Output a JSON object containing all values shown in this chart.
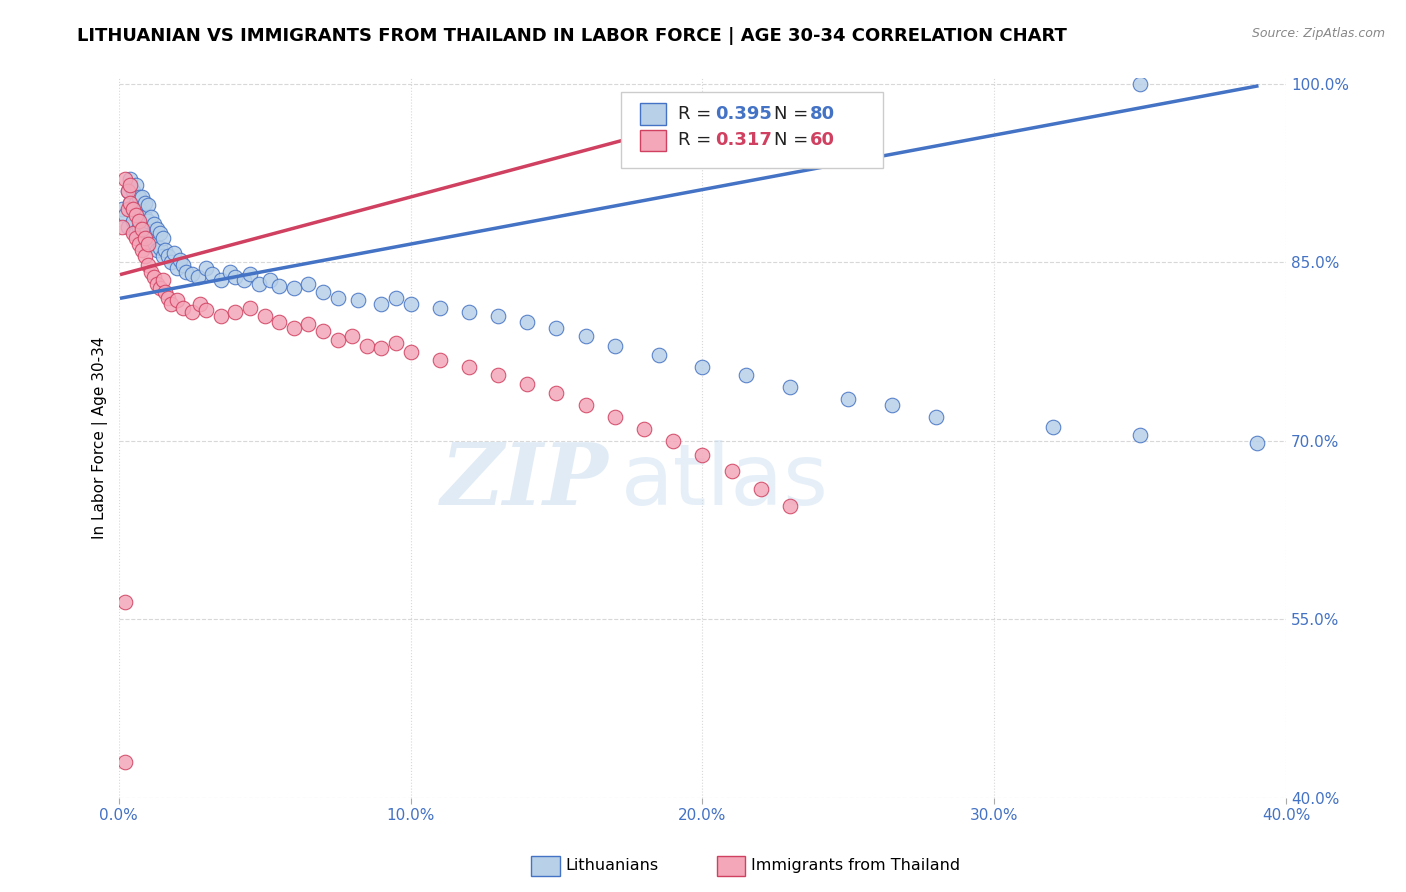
{
  "title": "LITHUANIAN VS IMMIGRANTS FROM THAILAND IN LABOR FORCE | AGE 30-34 CORRELATION CHART",
  "source": "Source: ZipAtlas.com",
  "ylabel": "In Labor Force | Age 30-34",
  "xlim": [
    0.0,
    0.4
  ],
  "ylim": [
    0.4,
    1.005
  ],
  "xtick_values": [
    0.0,
    0.1,
    0.2,
    0.3,
    0.4
  ],
  "ytick_values": [
    0.4,
    0.55,
    0.7,
    0.85,
    1.0
  ],
  "blue_color": "#b8d0e8",
  "blue_line_color": "#4472c4",
  "pink_color": "#f4a7b9",
  "pink_line_color": "#d04060",
  "blue_R": 0.395,
  "blue_N": 80,
  "pink_R": 0.317,
  "pink_N": 60,
  "watermark_zip": "ZIP",
  "watermark_atlas": "atlas",
  "grid_color": "#d8d8d8",
  "right_label_color": "#4472c4",
  "title_fontsize": 13,
  "axis_label_fontsize": 11,
  "tick_fontsize": 11,
  "blue_scatter_x": [
    0.001,
    0.002,
    0.003,
    0.003,
    0.004,
    0.004,
    0.005,
    0.005,
    0.005,
    0.006,
    0.006,
    0.006,
    0.007,
    0.007,
    0.007,
    0.008,
    0.008,
    0.008,
    0.009,
    0.009,
    0.009,
    0.01,
    0.01,
    0.01,
    0.011,
    0.011,
    0.012,
    0.012,
    0.013,
    0.013,
    0.014,
    0.014,
    0.015,
    0.015,
    0.016,
    0.017,
    0.018,
    0.019,
    0.02,
    0.021,
    0.022,
    0.023,
    0.025,
    0.027,
    0.03,
    0.032,
    0.035,
    0.038,
    0.04,
    0.043,
    0.045,
    0.048,
    0.052,
    0.055,
    0.06,
    0.065,
    0.07,
    0.075,
    0.082,
    0.09,
    0.095,
    0.1,
    0.11,
    0.12,
    0.13,
    0.14,
    0.15,
    0.16,
    0.17,
    0.185,
    0.2,
    0.215,
    0.23,
    0.25,
    0.265,
    0.28,
    0.32,
    0.35,
    0.39,
    0.35
  ],
  "blue_scatter_y": [
    0.895,
    0.89,
    0.91,
    0.88,
    0.9,
    0.92,
    0.885,
    0.895,
    0.91,
    0.875,
    0.9,
    0.915,
    0.88,
    0.895,
    0.905,
    0.87,
    0.89,
    0.905,
    0.875,
    0.888,
    0.9,
    0.87,
    0.885,
    0.898,
    0.872,
    0.888,
    0.865,
    0.882,
    0.86,
    0.878,
    0.862,
    0.875,
    0.855,
    0.87,
    0.86,
    0.855,
    0.85,
    0.858,
    0.845,
    0.852,
    0.848,
    0.842,
    0.84,
    0.838,
    0.845,
    0.84,
    0.835,
    0.842,
    0.838,
    0.835,
    0.84,
    0.832,
    0.835,
    0.83,
    0.828,
    0.832,
    0.825,
    0.82,
    0.818,
    0.815,
    0.82,
    0.815,
    0.812,
    0.808,
    0.805,
    0.8,
    0.795,
    0.788,
    0.78,
    0.772,
    0.762,
    0.755,
    0.745,
    0.735,
    0.73,
    0.72,
    0.712,
    0.705,
    0.698,
    1.0
  ],
  "pink_scatter_x": [
    0.001,
    0.002,
    0.003,
    0.003,
    0.004,
    0.004,
    0.005,
    0.005,
    0.006,
    0.006,
    0.007,
    0.007,
    0.008,
    0.008,
    0.009,
    0.009,
    0.01,
    0.01,
    0.011,
    0.012,
    0.013,
    0.014,
    0.015,
    0.016,
    0.017,
    0.018,
    0.02,
    0.022,
    0.025,
    0.028,
    0.03,
    0.035,
    0.04,
    0.045,
    0.05,
    0.055,
    0.06,
    0.065,
    0.07,
    0.075,
    0.08,
    0.085,
    0.09,
    0.095,
    0.1,
    0.11,
    0.12,
    0.13,
    0.14,
    0.15,
    0.16,
    0.17,
    0.18,
    0.19,
    0.2,
    0.21,
    0.22,
    0.23,
    0.002,
    0.002
  ],
  "pink_scatter_y": [
    0.88,
    0.92,
    0.91,
    0.895,
    0.9,
    0.915,
    0.875,
    0.895,
    0.87,
    0.89,
    0.865,
    0.885,
    0.86,
    0.878,
    0.855,
    0.87,
    0.848,
    0.865,
    0.842,
    0.838,
    0.832,
    0.828,
    0.835,
    0.825,
    0.82,
    0.815,
    0.818,
    0.812,
    0.808,
    0.815,
    0.81,
    0.805,
    0.808,
    0.812,
    0.805,
    0.8,
    0.795,
    0.798,
    0.792,
    0.785,
    0.788,
    0.78,
    0.778,
    0.782,
    0.775,
    0.768,
    0.762,
    0.755,
    0.748,
    0.74,
    0.73,
    0.72,
    0.71,
    0.7,
    0.688,
    0.675,
    0.66,
    0.645,
    0.43,
    0.565
  ],
  "blue_trendline_x": [
    0.001,
    0.39
  ],
  "blue_trendline_y": [
    0.82,
    0.998
  ],
  "pink_trendline_x": [
    0.001,
    0.23
  ],
  "pink_trendline_y": [
    0.84,
    0.99
  ]
}
